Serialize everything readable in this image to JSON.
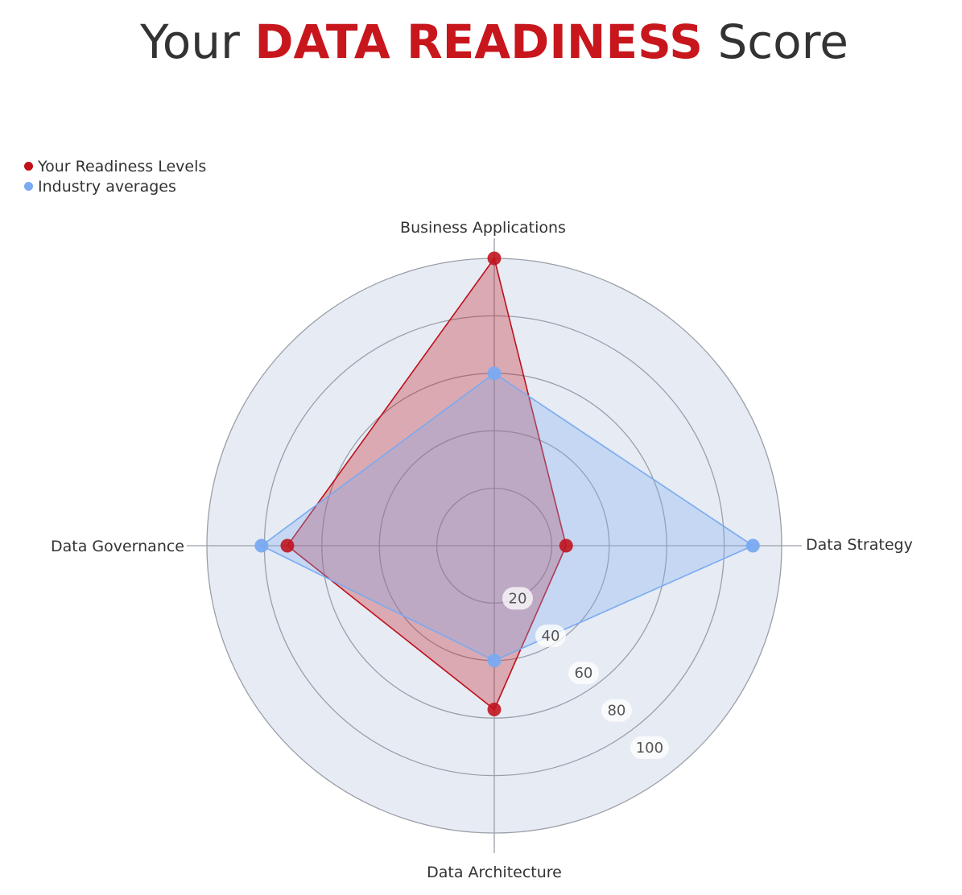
{
  "header": {
    "title_prefix": "Your",
    "title_accent": "DATA READINESS",
    "title_suffix": "Score"
  },
  "colors": {
    "accent": "#c8161d",
    "series_yours": "#c0101a",
    "series_industry": "#7aaaf0",
    "plot_background": "#e6ebf4",
    "grid": "#9a9fa8"
  },
  "chart_data": {
    "type": "radar",
    "categories": [
      "Business Applications",
      "Data Strategy",
      "Data Architecture",
      "Data Governance"
    ],
    "series": [
      {
        "name": "Your Readiness Levels",
        "values": [
          100,
          25,
          57,
          72
        ]
      },
      {
        "name": "Industry averages",
        "values": [
          60,
          90,
          40,
          81
        ]
      }
    ],
    "rlim": [
      0,
      100
    ],
    "ticks": [
      "20",
      "40",
      "60",
      "80",
      "100"
    ],
    "legend": "top-left",
    "grid": true
  }
}
